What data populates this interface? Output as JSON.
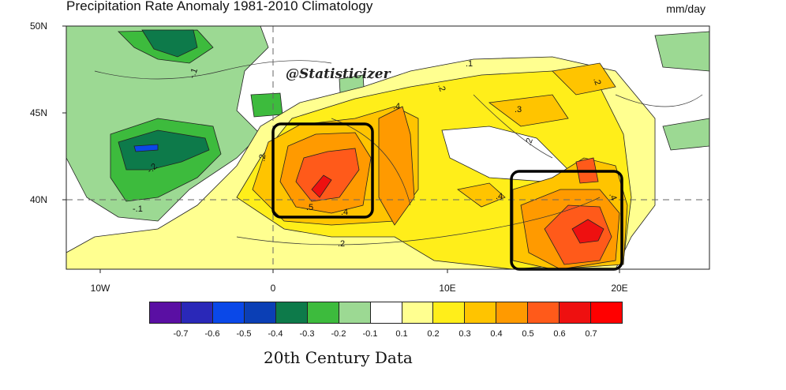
{
  "header": {
    "title": "Precipitation Rate Anomaly  1981-2010 Climatology",
    "units": "mm/day"
  },
  "map": {
    "lat_labels": [
      "50N",
      "45N",
      "40N"
    ],
    "lon_labels": [
      "10W",
      "0",
      "10E",
      "20E"
    ],
    "contour_labels": [
      "-.1",
      "-.2",
      ".1",
      ".2",
      ".3",
      ".4",
      ".5"
    ],
    "highlight_boxes": 2
  },
  "watermark": "@Statisticizer",
  "colorbar": {
    "labels": [
      "-0.7",
      "-0.6",
      "-0.5",
      "-0.4",
      "-0.3",
      "-0.2",
      "-0.1",
      "0.1",
      "0.2",
      "0.3",
      "0.4",
      "0.5",
      "0.6",
      "0.7"
    ],
    "colors": [
      "#5a0fa3",
      "#2a28b8",
      "#0a48e8",
      "#0b3fb5",
      "#0d7a4a",
      "#3dbb3d",
      "#9cd993",
      "#ffffff",
      "#ffff90",
      "#ffee1a",
      "#ffc400",
      "#ff9a00",
      "#ff5a1a",
      "#ee1010",
      "#ff0000"
    ]
  },
  "caption": "20th Century Data"
}
